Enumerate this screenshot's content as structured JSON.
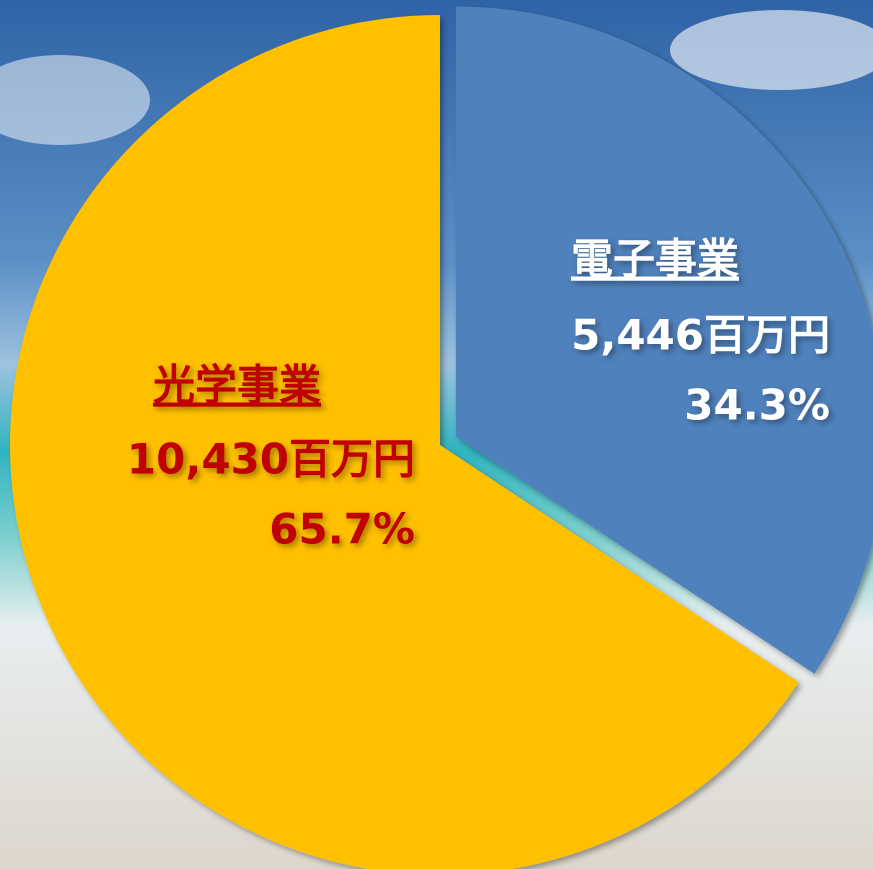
{
  "chart_data": {
    "type": "pie",
    "categories": [
      "電子事業",
      "光学事業"
    ],
    "values": [
      5446,
      10430
    ],
    "value_labels": [
      "5,446百万円",
      "10,430百万円"
    ],
    "percent_labels": [
      "34.3%",
      "65.7%"
    ],
    "colors": [
      "#4f81bd",
      "#ffc000"
    ],
    "label_colors": [
      "#ffffff",
      "#c00000"
    ]
  }
}
